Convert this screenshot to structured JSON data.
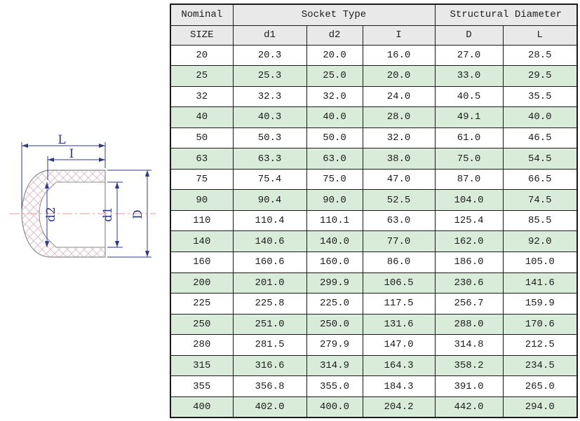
{
  "diagram": {
    "labels": {
      "overall_length": "L",
      "socket_depth": "I",
      "inner_diameter_bottom": "d2",
      "inner_diameter_mouth": "d1",
      "outer_diameter": "D"
    },
    "colors": {
      "dimension_line": "#2f3a8c",
      "hatch": "#dcbfc9",
      "outline": "#8c8c8c",
      "centerline": "#e79aa2"
    }
  },
  "colors": {
    "row_highlight": "#d9ecda",
    "header_bg": "#e9e9e9",
    "border": "#1a1a1a"
  },
  "table": {
    "header": {
      "nominal": "Nominal",
      "size": "SIZE",
      "socket_type": "Socket Type",
      "structural_diameter": "Structural Diameter",
      "columns": [
        "d1",
        "d2",
        "I",
        "D",
        "L"
      ]
    },
    "rows": [
      [
        "20",
        "20.3",
        "20.0",
        "16.0",
        "27.0",
        "28.5"
      ],
      [
        "25",
        "25.3",
        "25.0",
        "20.0",
        "33.0",
        "29.5"
      ],
      [
        "32",
        "32.3",
        "32.0",
        "24.0",
        "40.5",
        "35.5"
      ],
      [
        "40",
        "40.3",
        "40.0",
        "28.0",
        "49.1",
        "40.0"
      ],
      [
        "50",
        "50.3",
        "50.0",
        "32.0",
        "61.0",
        "46.5"
      ],
      [
        "63",
        "63.3",
        "63.0",
        "38.0",
        "75.0",
        "54.5"
      ],
      [
        "75",
        "75.4",
        "75.0",
        "47.0",
        "87.0",
        "66.5"
      ],
      [
        "90",
        "90.4",
        "90.0",
        "52.5",
        "104.0",
        "74.5"
      ],
      [
        "110",
        "110.4",
        "110.1",
        "63.0",
        "125.4",
        "85.5"
      ],
      [
        "140",
        "140.6",
        "140.0",
        "77.0",
        "162.0",
        "92.0"
      ],
      [
        "160",
        "160.6",
        "160.0",
        "86.0",
        "186.0",
        "105.0"
      ],
      [
        "200",
        "201.0",
        "299.9",
        "106.5",
        "230.6",
        "141.6"
      ],
      [
        "225",
        "225.8",
        "225.0",
        "117.5",
        "256.7",
        "159.9"
      ],
      [
        "250",
        "251.0",
        "250.0",
        "131.6",
        "288.0",
        "170.6"
      ],
      [
        "280",
        "281.5",
        "279.9",
        "147.0",
        "314.8",
        "212.5"
      ],
      [
        "315",
        "316.6",
        "314.9",
        "164.3",
        "358.2",
        "234.5"
      ],
      [
        "355",
        "356.8",
        "355.0",
        "184.3",
        "391.0",
        "265.0"
      ],
      [
        "400",
        "402.0",
        "400.0",
        "204.2",
        "442.0",
        "294.0"
      ]
    ]
  }
}
